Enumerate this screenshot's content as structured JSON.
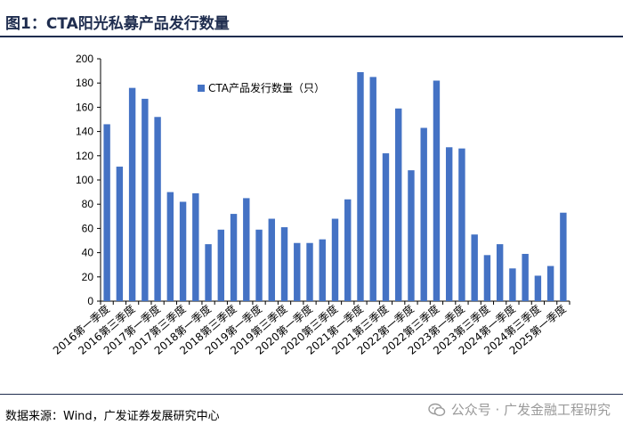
{
  "figure": {
    "title": "图1：CTA阳光私募产品发行数量",
    "source": "数据来源：Wind，广发证券发展研究中心",
    "watermark": "公众号 · 广发金融工程研究",
    "watermark_icon": "wechat-icon"
  },
  "colors": {
    "bar": "#4472c4",
    "title": "#1f2d4f",
    "axis": "#000000",
    "watermark": "#9a9a9a"
  },
  "chart_data": {
    "type": "bar",
    "title": "",
    "xlabel": "",
    "ylabel": "",
    "ylim": [
      0,
      200
    ],
    "yticks": [
      0,
      20,
      40,
      60,
      80,
      100,
      120,
      140,
      160,
      180,
      200
    ],
    "grid": false,
    "legend_position": "top-left",
    "series": [
      {
        "name": "CTA产品发行数量（只）",
        "values": [
          146,
          111,
          176,
          167,
          152,
          90,
          82,
          89,
          47,
          59,
          72,
          85,
          59,
          68,
          61,
          48,
          48,
          51,
          68,
          84,
          189,
          185,
          122,
          159,
          108,
          143,
          182,
          127,
          126,
          55,
          38,
          47,
          27,
          39,
          21,
          29,
          73
        ]
      }
    ],
    "categories": [
      "2016Q1",
      "2016Q2",
      "2016Q3",
      "2016Q4",
      "2017Q1",
      "2017Q2",
      "2017Q3",
      "2017Q4",
      "2018Q1",
      "2018Q2",
      "2018Q3",
      "2018Q4",
      "2019Q1",
      "2019Q2",
      "2019Q3",
      "2019Q4",
      "2020Q1",
      "2020Q2",
      "2020Q3",
      "2020Q4",
      "2021Q1",
      "2021Q2",
      "2021Q3",
      "2021Q4",
      "2022Q1",
      "2022Q2",
      "2022Q3",
      "2022Q4",
      "2023Q1",
      "2023Q2",
      "2023Q3",
      "2023Q4",
      "2024Q1",
      "2024Q2",
      "2024Q3",
      "2024Q4",
      "2025Q1"
    ],
    "visible_tick_labels": [
      "2016第一季度",
      "2016第三季度",
      "2017第一季度",
      "2017第三季度",
      "2018第一季度",
      "2018第三季度",
      "2019第一季度",
      "2019第三季度",
      "2020第一季度",
      "2020第三季度",
      "2021第一季度",
      "2021第三季度",
      "2022第一季度",
      "2022第三季度",
      "2023第一季度",
      "2023第三季度",
      "2024第一季度",
      "2024第三季度",
      "2025第一季度"
    ]
  }
}
